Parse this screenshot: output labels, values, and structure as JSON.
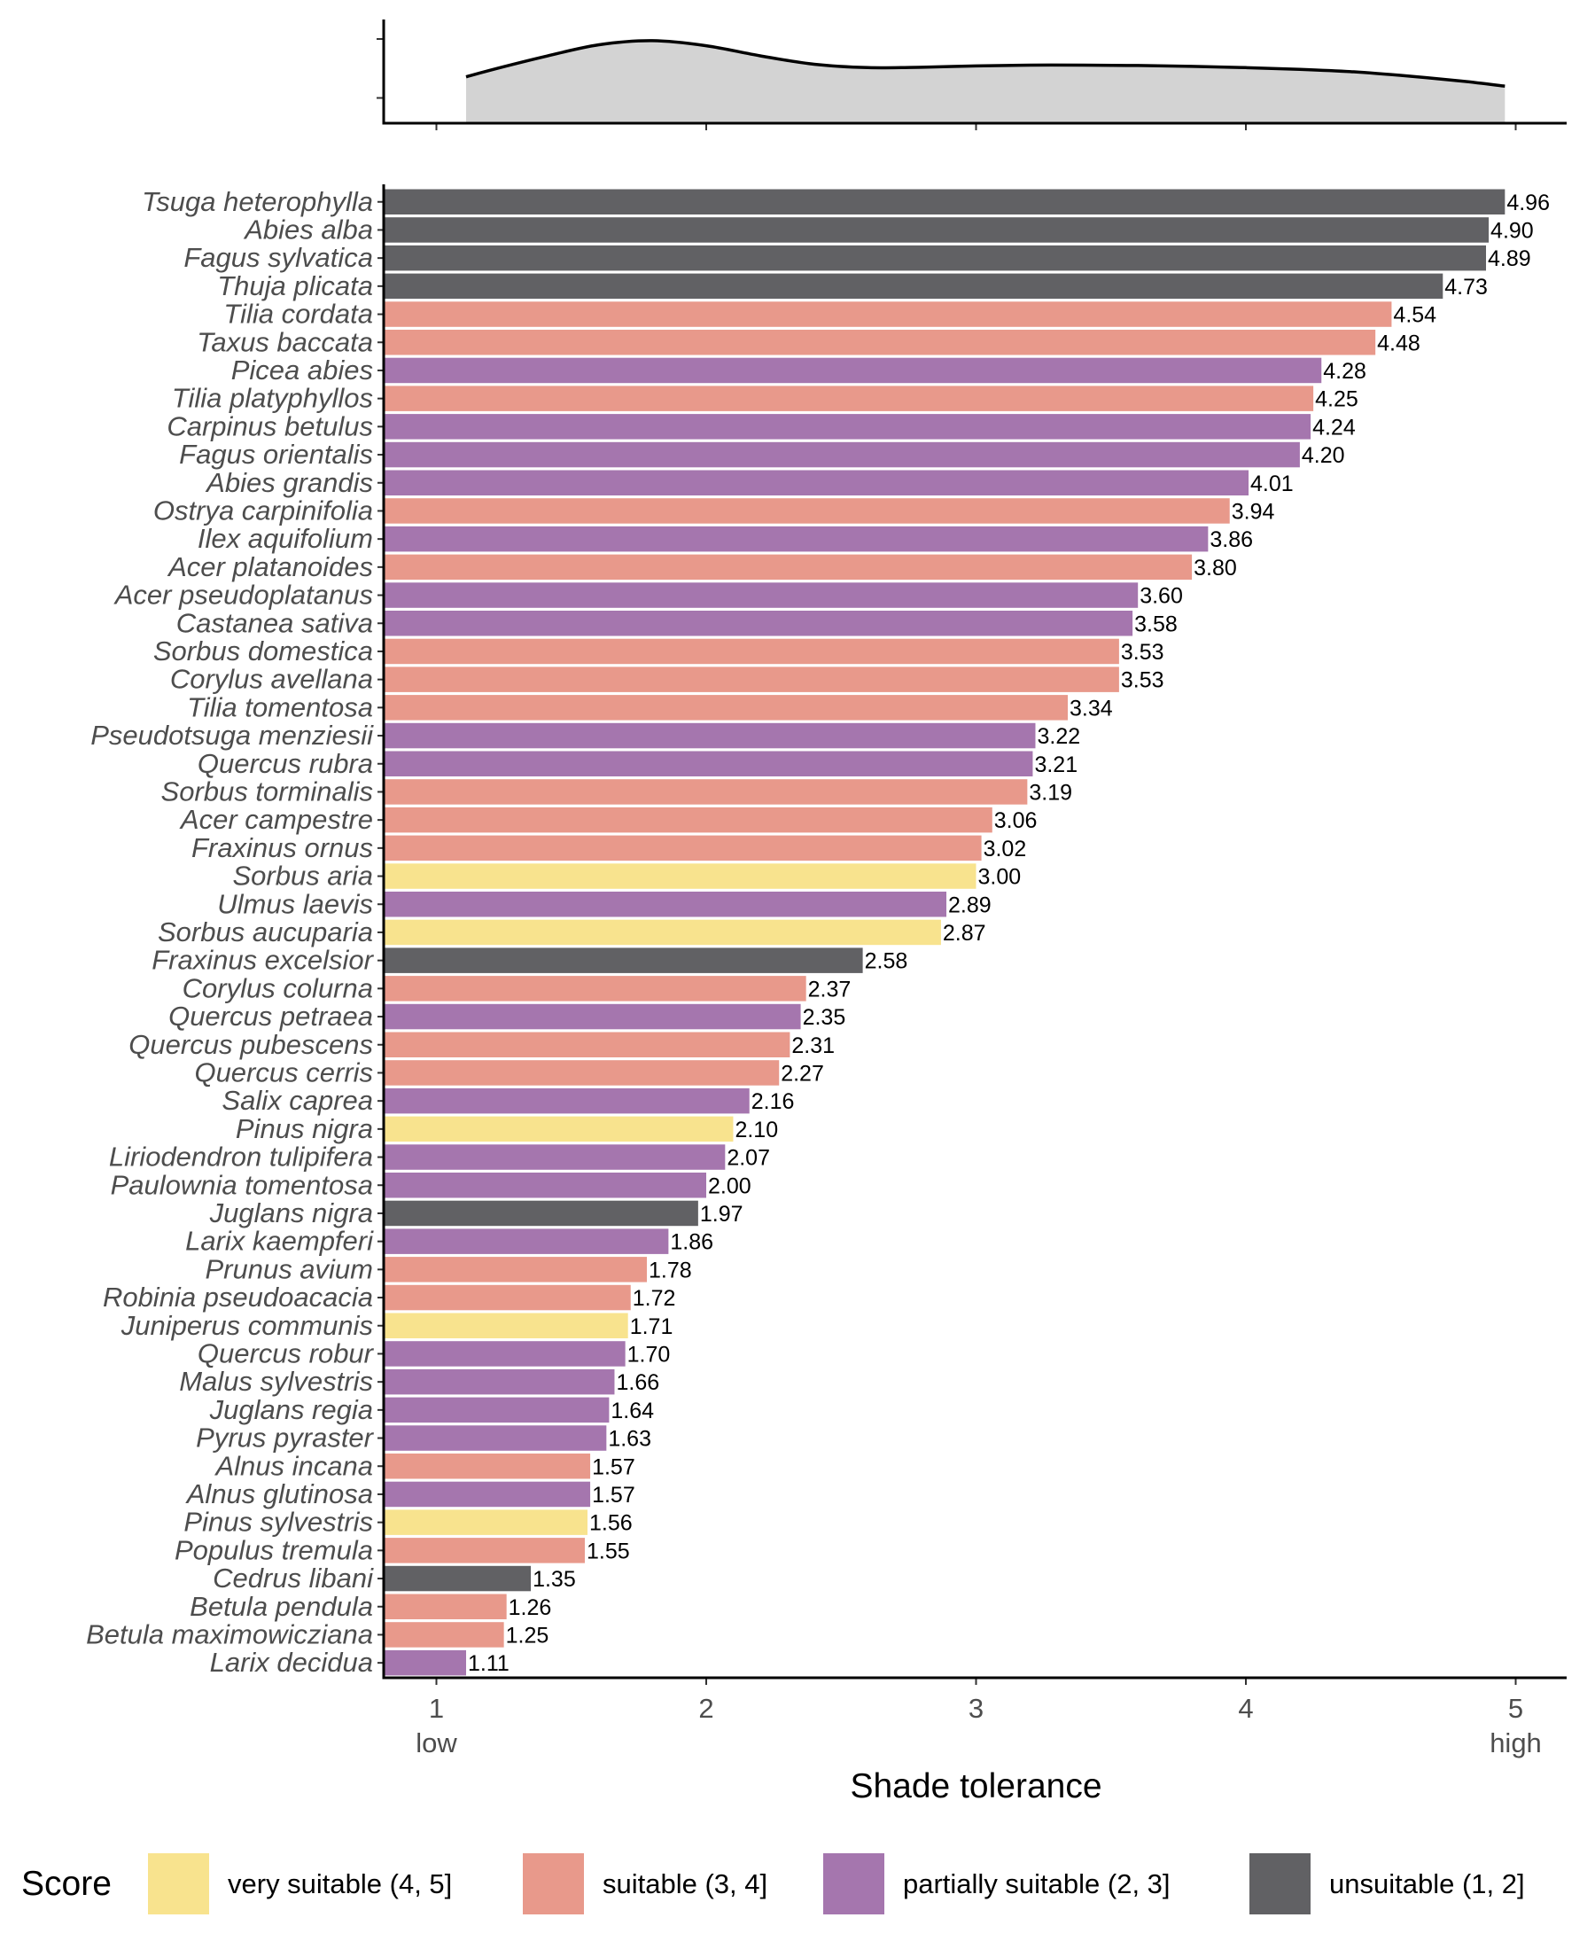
{
  "chart_data": {
    "type": "bar",
    "orientation": "horizontal",
    "xlabel": "Shade tolerance",
    "xlim": [
      0.8,
      5.2
    ],
    "x_ticks": [
      1,
      2,
      3,
      4,
      5
    ],
    "x_tick_labels": [
      "1",
      "2",
      "3",
      "4",
      "5"
    ],
    "x_end_labels": {
      "low": "low",
      "high": "high"
    },
    "legend": {
      "title": "Score",
      "position": "bottom",
      "entries": [
        {
          "key": "very",
          "label": "very suitable (4, 5]",
          "color": "#F8E38E"
        },
        {
          "key": "suit",
          "label": "suitable (3, 4]",
          "color": "#E8998B"
        },
        {
          "key": "part",
          "label": "partially suitable (2, 3]",
          "color": "#A576AE"
        },
        {
          "key": "unsu",
          "label": "unsuitable (1, 2]",
          "color": "#616164"
        }
      ]
    },
    "species": [
      {
        "name": "Tsuga heterophylla",
        "value": 4.96,
        "label": "4.96",
        "score": "unsu"
      },
      {
        "name": "Abies alba",
        "value": 4.9,
        "label": "4.90",
        "score": "unsu"
      },
      {
        "name": "Fagus sylvatica",
        "value": 4.89,
        "label": "4.89",
        "score": "unsu"
      },
      {
        "name": "Thuja plicata",
        "value": 4.73,
        "label": "4.73",
        "score": "unsu"
      },
      {
        "name": "Tilia cordata",
        "value": 4.54,
        "label": "4.54",
        "score": "suit"
      },
      {
        "name": "Taxus baccata",
        "value": 4.48,
        "label": "4.48",
        "score": "suit"
      },
      {
        "name": "Picea abies",
        "value": 4.28,
        "label": "4.28",
        "score": "part"
      },
      {
        "name": "Tilia platyphyllos",
        "value": 4.25,
        "label": "4.25",
        "score": "suit"
      },
      {
        "name": "Carpinus betulus",
        "value": 4.24,
        "label": "4.24",
        "score": "part"
      },
      {
        "name": "Fagus orientalis",
        "value": 4.2,
        "label": "4.20",
        "score": "part"
      },
      {
        "name": "Abies grandis",
        "value": 4.01,
        "label": "4.01",
        "score": "part"
      },
      {
        "name": "Ostrya carpinifolia",
        "value": 3.94,
        "label": "3.94",
        "score": "suit"
      },
      {
        "name": "Ilex aquifolium",
        "value": 3.86,
        "label": "3.86",
        "score": "part"
      },
      {
        "name": "Acer platanoides",
        "value": 3.8,
        "label": "3.80",
        "score": "suit"
      },
      {
        "name": "Acer pseudoplatanus",
        "value": 3.6,
        "label": "3.60",
        "score": "part"
      },
      {
        "name": "Castanea sativa",
        "value": 3.58,
        "label": "3.58",
        "score": "part"
      },
      {
        "name": "Sorbus domestica",
        "value": 3.53,
        "label": "3.53",
        "score": "suit"
      },
      {
        "name": "Corylus avellana",
        "value": 3.53,
        "label": "3.53",
        "score": "suit"
      },
      {
        "name": "Tilia tomentosa",
        "value": 3.34,
        "label": "3.34",
        "score": "suit"
      },
      {
        "name": "Pseudotsuga menziesii",
        "value": 3.22,
        "label": "3.22",
        "score": "part"
      },
      {
        "name": "Quercus rubra",
        "value": 3.21,
        "label": "3.21",
        "score": "part"
      },
      {
        "name": "Sorbus torminalis",
        "value": 3.19,
        "label": "3.19",
        "score": "suit"
      },
      {
        "name": "Acer campestre",
        "value": 3.06,
        "label": "3.06",
        "score": "suit"
      },
      {
        "name": "Fraxinus ornus",
        "value": 3.02,
        "label": "3.02",
        "score": "suit"
      },
      {
        "name": "Sorbus aria",
        "value": 3.0,
        "label": "3.00",
        "score": "very"
      },
      {
        "name": "Ulmus laevis",
        "value": 2.89,
        "label": "2.89",
        "score": "part"
      },
      {
        "name": "Sorbus aucuparia",
        "value": 2.87,
        "label": "2.87",
        "score": "very"
      },
      {
        "name": "Fraxinus excelsior",
        "value": 2.58,
        "label": "2.58",
        "score": "unsu"
      },
      {
        "name": "Corylus colurna",
        "value": 2.37,
        "label": "2.37",
        "score": "suit"
      },
      {
        "name": "Quercus petraea",
        "value": 2.35,
        "label": "2.35",
        "score": "part"
      },
      {
        "name": "Quercus pubescens",
        "value": 2.31,
        "label": "2.31",
        "score": "suit"
      },
      {
        "name": "Quercus cerris",
        "value": 2.27,
        "label": "2.27",
        "score": "suit"
      },
      {
        "name": "Salix caprea",
        "value": 2.16,
        "label": "2.16",
        "score": "part"
      },
      {
        "name": "Pinus nigra",
        "value": 2.1,
        "label": "2.10",
        "score": "very"
      },
      {
        "name": "Liriodendron tulipifera",
        "value": 2.07,
        "label": "2.07",
        "score": "part"
      },
      {
        "name": "Paulownia tomentosa",
        "value": 2.0,
        "label": "2.00",
        "score": "part"
      },
      {
        "name": "Juglans nigra",
        "value": 1.97,
        "label": "1.97",
        "score": "unsu"
      },
      {
        "name": "Larix kaempferi",
        "value": 1.86,
        "label": "1.86",
        "score": "part"
      },
      {
        "name": "Prunus avium",
        "value": 1.78,
        "label": "1.78",
        "score": "suit"
      },
      {
        "name": "Robinia pseudoacacia",
        "value": 1.72,
        "label": "1.72",
        "score": "suit"
      },
      {
        "name": "Juniperus communis",
        "value": 1.71,
        "label": "1.71",
        "score": "very"
      },
      {
        "name": "Quercus robur",
        "value": 1.7,
        "label": "1.70",
        "score": "part"
      },
      {
        "name": "Malus sylvestris",
        "value": 1.66,
        "label": "1.66",
        "score": "part"
      },
      {
        "name": "Juglans regia",
        "value": 1.64,
        "label": "1.64",
        "score": "part"
      },
      {
        "name": "Pyrus pyraster",
        "value": 1.63,
        "label": "1.63",
        "score": "part"
      },
      {
        "name": "Alnus incana",
        "value": 1.57,
        "label": "1.57",
        "score": "suit"
      },
      {
        "name": "Alnus glutinosa",
        "value": 1.57,
        "label": "1.57",
        "score": "part"
      },
      {
        "name": "Pinus sylvestris",
        "value": 1.56,
        "label": "1.56",
        "score": "very"
      },
      {
        "name": "Populus tremula",
        "value": 1.55,
        "label": "1.55",
        "score": "suit"
      },
      {
        "name": "Cedrus libani",
        "value": 1.35,
        "label": "1.35",
        "score": "unsu"
      },
      {
        "name": "Betula pendula",
        "value": 1.26,
        "label": "1.26",
        "score": "suit"
      },
      {
        "name": "Betula maximowicziana",
        "value": 1.25,
        "label": "1.25",
        "score": "suit"
      },
      {
        "name": "Larix decidua",
        "value": 1.11,
        "label": "1.11",
        "score": "part"
      }
    ],
    "density": {
      "fill_color": "#D3D3D3",
      "line_color": "#000000",
      "x": [
        1.11,
        1.2,
        1.4,
        1.6,
        1.8,
        2.0,
        2.2,
        2.4,
        2.6,
        2.8,
        3.0,
        3.2,
        3.4,
        3.6,
        3.8,
        4.0,
        4.2,
        4.4,
        4.6,
        4.8,
        4.96
      ],
      "y": [
        0.55,
        0.63,
        0.79,
        0.93,
        0.98,
        0.92,
        0.8,
        0.7,
        0.66,
        0.665,
        0.68,
        0.69,
        0.69,
        0.685,
        0.675,
        0.66,
        0.64,
        0.61,
        0.56,
        0.5,
        0.44
      ],
      "ylim": [
        0,
        1.2
      ],
      "y_ticks": [
        0.3,
        1.0
      ]
    }
  }
}
